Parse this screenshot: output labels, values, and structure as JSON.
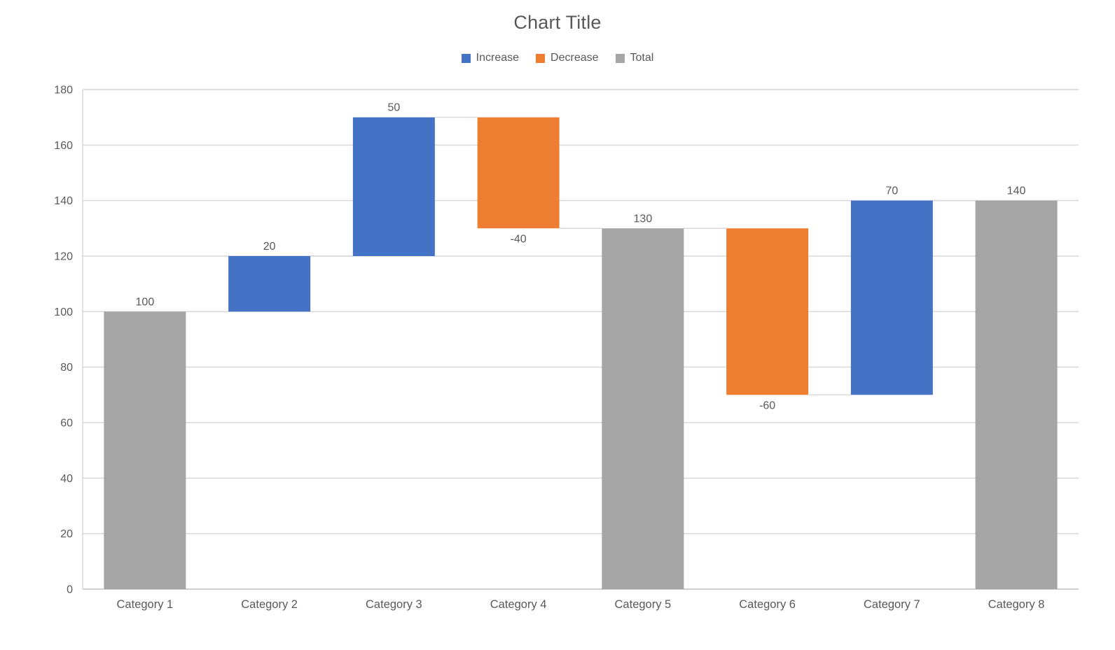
{
  "chart_data": {
    "type": "bar",
    "subtype": "waterfall",
    "title": "Chart Title",
    "categories": [
      "Category 1",
      "Category 2",
      "Category 3",
      "Category 4",
      "Category 5",
      "Category 6",
      "Category 7",
      "Category 8"
    ],
    "bars": [
      {
        "category": "Category 1",
        "value": 100,
        "label": "100",
        "kind": "total",
        "start": 0,
        "end": 100
      },
      {
        "category": "Category 2",
        "value": 20,
        "label": "20",
        "kind": "increase",
        "start": 100,
        "end": 120
      },
      {
        "category": "Category 3",
        "value": 50,
        "label": "50",
        "kind": "increase",
        "start": 120,
        "end": 170
      },
      {
        "category": "Category 4",
        "value": -40,
        "label": "-40",
        "kind": "decrease",
        "start": 170,
        "end": 130
      },
      {
        "category": "Category 5",
        "value": 130,
        "label": "130",
        "kind": "total",
        "start": 0,
        "end": 130
      },
      {
        "category": "Category 6",
        "value": -60,
        "label": "-60",
        "kind": "decrease",
        "start": 130,
        "end": 70
      },
      {
        "category": "Category 7",
        "value": 70,
        "label": "70",
        "kind": "increase",
        "start": 70,
        "end": 140
      },
      {
        "category": "Category 8",
        "value": 140,
        "label": "140",
        "kind": "total",
        "start": 0,
        "end": 140
      }
    ],
    "legend": [
      {
        "label": "Increase",
        "kind": "increase",
        "color": "#4472C4"
      },
      {
        "label": "Decrease",
        "kind": "decrease",
        "color": "#ED7D31"
      },
      {
        "label": "Total",
        "kind": "total",
        "color": "#A5A5A5"
      }
    ],
    "legend_position": "top",
    "grid": true,
    "xlabel": "",
    "ylabel": "",
    "y_axis": {
      "min": 0,
      "max": 180,
      "step": 20,
      "ticks": [
        0,
        20,
        40,
        60,
        80,
        100,
        120,
        140,
        160,
        180
      ],
      "tick_labels": [
        "0",
        "20",
        "40",
        "60",
        "80",
        "100",
        "120",
        "140",
        "160",
        "180"
      ]
    },
    "colors": {
      "increase": "#4472C4",
      "decrease": "#ED7D31",
      "total": "#A5A5A5",
      "grid": "#D9D9D9",
      "axis_line": "#BFBFBF",
      "connector": "#D9D9D9",
      "text": "#595959",
      "background": "#FFFFFF"
    }
  }
}
